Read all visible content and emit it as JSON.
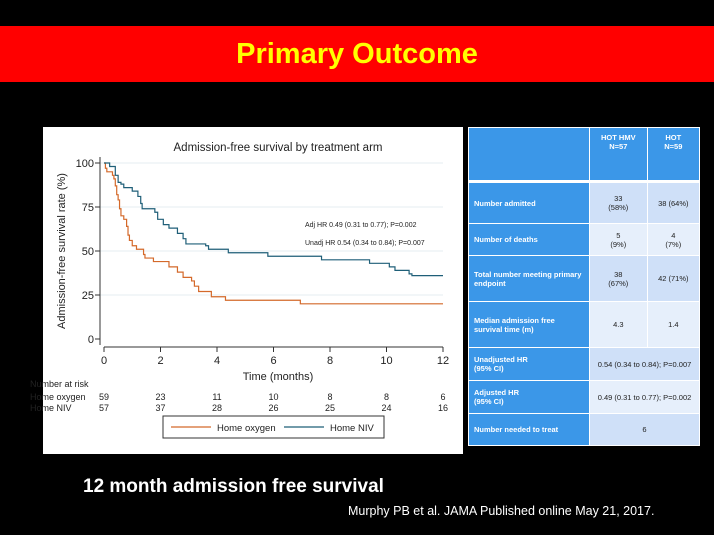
{
  "slide": {
    "title": "Primary Outcome",
    "subtitle": "12 month admission free survival",
    "citation": "Murphy PB et al. JAMA Published online May 21, 2017."
  },
  "chart_data": {
    "type": "line",
    "step": true,
    "title": "Admission-free survival by treatment arm",
    "xlabel": "Time (months)",
    "ylabel": "Admission-free survival rate (%)",
    "xlim": [
      0,
      12
    ],
    "ylim": [
      0,
      100
    ],
    "xticks": [
      0,
      2,
      4,
      6,
      8,
      10,
      12
    ],
    "yticks": [
      0,
      25,
      50,
      75,
      100
    ],
    "grid": "horizontal",
    "annotations": [
      "Adj HR 0.49 (0.31 to 0.77); P=0.002",
      "Unadj HR 0.54 (0.34 to 0.84); P=0.007"
    ],
    "series": [
      {
        "name": "Home oxygen",
        "color": "#d4692a",
        "points": [
          [
            0,
            100
          ],
          [
            0.05,
            97
          ],
          [
            0.1,
            95
          ],
          [
            0.3,
            93
          ],
          [
            0.35,
            91
          ],
          [
            0.4,
            87
          ],
          [
            0.45,
            82
          ],
          [
            0.5,
            79
          ],
          [
            0.55,
            74
          ],
          [
            0.6,
            70
          ],
          [
            0.7,
            68
          ],
          [
            0.8,
            64
          ],
          [
            0.85,
            59
          ],
          [
            0.9,
            56
          ],
          [
            1.0,
            53
          ],
          [
            1.15,
            51
          ],
          [
            1.4,
            48
          ],
          [
            1.45,
            46
          ],
          [
            1.75,
            44
          ],
          [
            2.3,
            41
          ],
          [
            2.6,
            38
          ],
          [
            2.8,
            35
          ],
          [
            3.1,
            33
          ],
          [
            3.2,
            30
          ],
          [
            3.35,
            27
          ],
          [
            3.8,
            24
          ],
          [
            4.3,
            22
          ],
          [
            6.95,
            20
          ],
          [
            12,
            20
          ]
        ]
      },
      {
        "name": "Home NIV",
        "color": "#1f5f78",
        "points": [
          [
            0,
            100
          ],
          [
            0.2,
            98
          ],
          [
            0.4,
            93
          ],
          [
            0.5,
            89
          ],
          [
            0.6,
            88
          ],
          [
            0.7,
            86
          ],
          [
            1.0,
            84
          ],
          [
            1.2,
            81
          ],
          [
            1.3,
            77
          ],
          [
            1.35,
            74
          ],
          [
            1.8,
            72
          ],
          [
            1.9,
            68
          ],
          [
            2.1,
            65
          ],
          [
            2.3,
            63
          ],
          [
            2.6,
            60
          ],
          [
            2.8,
            57
          ],
          [
            2.9,
            54
          ],
          [
            3.6,
            53
          ],
          [
            3.7,
            51
          ],
          [
            4.4,
            49
          ],
          [
            5.8,
            47
          ],
          [
            7.7,
            45
          ],
          [
            9.4,
            43
          ],
          [
            10.1,
            41
          ],
          [
            10.3,
            39
          ],
          [
            10.8,
            37
          ],
          [
            10.9,
            36
          ],
          [
            12,
            36
          ]
        ]
      }
    ],
    "risk_table": {
      "label": "Number at risk",
      "rows": [
        {
          "name": "Home oxygen",
          "values": [
            59,
            23,
            11,
            10,
            8,
            8,
            6
          ]
        },
        {
          "name": "Home NIV",
          "values": [
            57,
            37,
            28,
            26,
            25,
            24,
            16
          ]
        }
      ]
    },
    "legend": {
      "placement": "bottom",
      "entries": [
        "Home oxygen",
        "Home NIV"
      ]
    }
  },
  "table": {
    "headers": [
      "",
      "HOT HMV\nN=57",
      "HOT\nN=59"
    ],
    "rows": [
      {
        "label": "Number admitted",
        "a": "33\n(58%)",
        "b": "38 (64%)"
      },
      {
        "label": "Number of deaths",
        "a": "5\n(9%)",
        "b": "4\n(7%)"
      },
      {
        "label": "Total number meeting primary endpoint",
        "a": "38\n(67%)",
        "b": "42 (71%)"
      },
      {
        "label": "Median admission free survival time (m)",
        "a": "4.3",
        "b": "1.4"
      },
      {
        "label": "Unadjusted HR\n(95% CI)",
        "span": "0.54 (0.34 to 0.84); P=0.007"
      },
      {
        "label": "Adjusted HR\n(95% CI)",
        "span": "0.49 (0.31 to 0.77); P=0.002"
      },
      {
        "label": "Number needed to treat",
        "span": "6"
      }
    ]
  }
}
